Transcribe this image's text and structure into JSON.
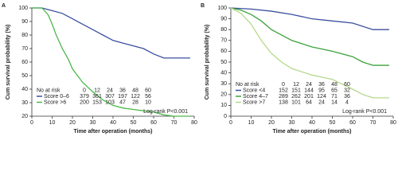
{
  "chart_data": [
    {
      "type": "line",
      "label": "A",
      "ylabel": "Cum survival probability (%)",
      "xlabel": "Time after operation (months)",
      "xlim": [
        0,
        80
      ],
      "ylim": [
        20,
        100
      ],
      "xticks": [
        0,
        10,
        20,
        30,
        40,
        50,
        60,
        70,
        80
      ],
      "yticks": [
        20,
        30,
        40,
        50,
        60,
        70,
        80,
        90,
        100
      ],
      "at_risk_title": "No at risk",
      "at_risk_times": [
        0,
        12,
        24,
        36,
        48,
        60
      ],
      "annotation": "Log-rank P<0.001",
      "series": [
        {
          "name": "Score 0–6",
          "color": "#3b4f9e",
          "x": [
            0,
            5,
            10,
            15,
            20,
            25,
            30,
            35,
            40,
            45,
            50,
            55,
            60,
            65,
            70,
            75,
            78
          ],
          "values": [
            100,
            100,
            98,
            96,
            92,
            88,
            84,
            80,
            76,
            74,
            72,
            70,
            66,
            63,
            63,
            63,
            63
          ],
          "at_risk": [
            379,
            361,
            307,
            197,
            122,
            56
          ]
        },
        {
          "name": "Score >6",
          "color": "#4cb84c",
          "x": [
            0,
            5,
            8,
            10,
            12,
            15,
            18,
            20,
            25,
            30,
            35,
            40,
            45,
            50,
            55,
            60,
            65,
            70,
            75,
            78
          ],
          "values": [
            100,
            100,
            95,
            88,
            80,
            70,
            62,
            55,
            45,
            38,
            32,
            28,
            26,
            25,
            24,
            23,
            21,
            20,
            20,
            20
          ],
          "at_risk": [
            200,
            153,
            103,
            47,
            28,
            10
          ]
        }
      ]
    },
    {
      "type": "line",
      "label": "B",
      "ylabel": "Cum survival probability (%)",
      "xlabel": "Time after operation (months)",
      "xlim": [
        0,
        80
      ],
      "ylim": [
        0,
        100
      ],
      "xticks": [
        0,
        10,
        20,
        30,
        40,
        50,
        60,
        70,
        80
      ],
      "yticks": [
        0,
        10,
        20,
        30,
        40,
        50,
        60,
        70,
        80,
        90,
        100
      ],
      "at_risk_title": "No at risk",
      "at_risk_times": [
        0,
        12,
        24,
        36,
        48,
        60
      ],
      "annotation": "Log-rank P<0.001",
      "series": [
        {
          "name": "Score <4",
          "color": "#3b4f9e",
          "x": [
            0,
            10,
            20,
            30,
            40,
            50,
            60,
            70,
            78
          ],
          "values": [
            100,
            99,
            97,
            94,
            90,
            88,
            86,
            80,
            80
          ],
          "at_risk": [
            152,
            151,
            144,
            95,
            65,
            32
          ]
        },
        {
          "name": "Score 4–7",
          "color": "#3aa23a",
          "x": [
            0,
            5,
            10,
            15,
            20,
            30,
            40,
            50,
            60,
            65,
            70,
            78
          ],
          "values": [
            100,
            98,
            94,
            88,
            80,
            70,
            64,
            60,
            55,
            50,
            47,
            47
          ],
          "at_risk": [
            289,
            262,
            201,
            124,
            71,
            36
          ]
        },
        {
          "name": "Score >7",
          "color": "#b5d98c",
          "x": [
            0,
            5,
            10,
            15,
            20,
            25,
            30,
            40,
            50,
            60,
            65,
            70,
            78
          ],
          "values": [
            100,
            95,
            85,
            70,
            58,
            50,
            44,
            38,
            34,
            25,
            20,
            17,
            17
          ],
          "at_risk": [
            138,
            101,
            64,
            24,
            14,
            4
          ]
        }
      ]
    }
  ]
}
